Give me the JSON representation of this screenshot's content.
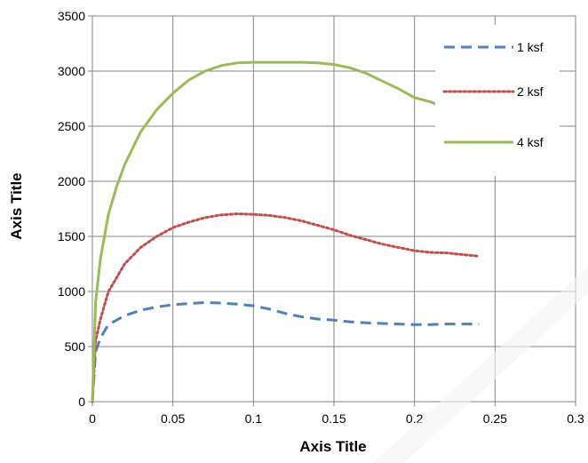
{
  "chart_data": {
    "type": "line",
    "xlabel": "Axis Title",
    "ylabel": "Axis Title",
    "xlim": [
      0,
      0.3
    ],
    "ylim": [
      0,
      3500
    ],
    "x_ticks": [
      "0",
      "0.05",
      "0.1",
      "0.15",
      "0.2",
      "0.25",
      "0.3"
    ],
    "y_ticks": [
      "0",
      "500",
      "1000",
      "1500",
      "2000",
      "2500",
      "3000",
      "3500"
    ],
    "grid": true,
    "legend_position": "top-right",
    "series": [
      {
        "name": "1 ksf",
        "color": "#4F81BD",
        "style": "dashed",
        "x": [
          0,
          0.002,
          0.005,
          0.01,
          0.02,
          0.03,
          0.04,
          0.05,
          0.06,
          0.07,
          0.08,
          0.09,
          0.1,
          0.11,
          0.12,
          0.13,
          0.14,
          0.15,
          0.16,
          0.17,
          0.18,
          0.19,
          0.2,
          0.21,
          0.22,
          0.23,
          0.24
        ],
        "y": [
          0,
          450,
          580,
          700,
          780,
          830,
          860,
          880,
          890,
          900,
          895,
          885,
          870,
          840,
          800,
          770,
          750,
          740,
          725,
          715,
          710,
          705,
          700,
          700,
          705,
          705,
          705
        ]
      },
      {
        "name": "2 ksf",
        "color": "#C0504D",
        "style": "dotted",
        "x": [
          0,
          0.002,
          0.005,
          0.01,
          0.02,
          0.03,
          0.04,
          0.05,
          0.06,
          0.07,
          0.08,
          0.09,
          0.1,
          0.11,
          0.12,
          0.13,
          0.14,
          0.15,
          0.16,
          0.17,
          0.18,
          0.19,
          0.2,
          0.21,
          0.22,
          0.23,
          0.24
        ],
        "y": [
          0,
          550,
          750,
          1000,
          1250,
          1400,
          1500,
          1580,
          1630,
          1670,
          1695,
          1705,
          1700,
          1690,
          1670,
          1640,
          1600,
          1560,
          1510,
          1470,
          1430,
          1400,
          1370,
          1355,
          1350,
          1335,
          1320
        ]
      },
      {
        "name": "4 ksf",
        "color": "#9BBB59",
        "style": "solid",
        "x": [
          0,
          0.002,
          0.005,
          0.01,
          0.015,
          0.02,
          0.03,
          0.04,
          0.05,
          0.06,
          0.07,
          0.08,
          0.09,
          0.1,
          0.11,
          0.12,
          0.13,
          0.14,
          0.15,
          0.16,
          0.17,
          0.18,
          0.19,
          0.2,
          0.21,
          0.215
        ],
        "y": [
          0,
          900,
          1300,
          1700,
          1950,
          2150,
          2450,
          2650,
          2800,
          2920,
          3000,
          3050,
          3075,
          3080,
          3080,
          3080,
          3080,
          3075,
          3060,
          3030,
          2980,
          2910,
          2840,
          2760,
          2720,
          2690
        ]
      }
    ]
  }
}
